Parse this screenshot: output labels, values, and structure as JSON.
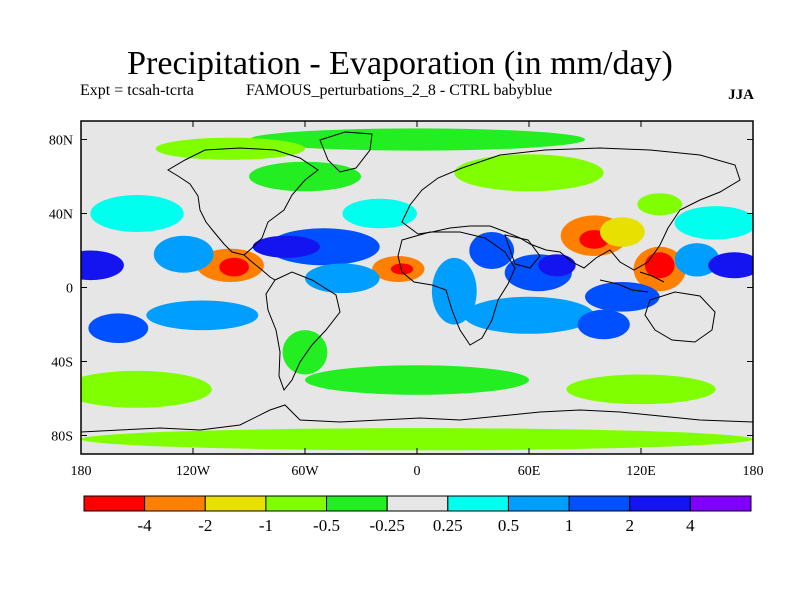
{
  "title": "Precipitation - Evaporation (in mm/day)",
  "subtitle": {
    "experiment": "Expt = tcsah-tcrta",
    "case": "FAMOUS_perturbations_2_8 - CTRL babyblue",
    "season": "JJA"
  },
  "map": {
    "lat_labels": [
      "80N",
      "40N",
      "0",
      "40S",
      "80S"
    ],
    "lon_labels": [
      "180",
      "120W",
      "60W",
      "0",
      "60E",
      "120E",
      "180"
    ],
    "lat_values": [
      80,
      40,
      0,
      -40,
      -80
    ],
    "lon_values": [
      -180,
      -120,
      -60,
      0,
      60,
      120,
      180
    ],
    "lat_range": [
      -90,
      90
    ],
    "lon_range": [
      -180,
      180
    ]
  },
  "colorbar": {
    "colors": [
      "#ff0000",
      "#ff7f00",
      "#e8e000",
      "#80ff00",
      "#22ee22",
      "#e6e6e6",
      "#00ffee",
      "#009fff",
      "#0050ff",
      "#1414f0",
      "#7f00ff"
    ],
    "labels": [
      "-4",
      "-2",
      "-1",
      "-0.5",
      "-0.25",
      "0.25",
      "0.5",
      "1",
      "2",
      "4"
    ]
  },
  "field_patches": [
    {
      "lon": -175,
      "lat": 12,
      "rlon": 18,
      "rlat": 8,
      "level": 9
    },
    {
      "lon": -100,
      "lat": 12,
      "rlon": 18,
      "rlat": 9,
      "level": 1
    },
    {
      "lon": -98,
      "lat": 11,
      "rlon": 8,
      "rlat": 5,
      "level": 0
    },
    {
      "lon": -125,
      "lat": 18,
      "rlon": 16,
      "rlat": 10,
      "level": 7
    },
    {
      "lon": -50,
      "lat": 22,
      "rlon": 30,
      "rlat": 10,
      "level": 8
    },
    {
      "lon": -70,
      "lat": 22,
      "rlon": 18,
      "rlat": 6,
      "level": 9
    },
    {
      "lon": -10,
      "lat": 10,
      "rlon": 14,
      "rlat": 7,
      "level": 1
    },
    {
      "lon": -8,
      "lat": 10,
      "rlon": 6,
      "rlat": 3,
      "level": 0
    },
    {
      "lon": -40,
      "lat": 5,
      "rlon": 20,
      "rlat": 8,
      "level": 7
    },
    {
      "lon": 20,
      "lat": -2,
      "rlon": 12,
      "rlat": 18,
      "level": 7
    },
    {
      "lon": 40,
      "lat": 20,
      "rlon": 12,
      "rlat": 10,
      "level": 8
    },
    {
      "lon": 65,
      "lat": 8,
      "rlon": 18,
      "rlat": 10,
      "level": 8
    },
    {
      "lon": 75,
      "lat": 12,
      "rlon": 10,
      "rlat": 6,
      "level": 9
    },
    {
      "lon": 95,
      "lat": 28,
      "rlon": 18,
      "rlat": 11,
      "level": 1
    },
    {
      "lon": 95,
      "lat": 26,
      "rlon": 8,
      "rlat": 5,
      "level": 0
    },
    {
      "lon": 110,
      "lat": 30,
      "rlon": 12,
      "rlat": 8,
      "level": 2
    },
    {
      "lon": 130,
      "lat": 10,
      "rlon": 14,
      "rlat": 12,
      "level": 1
    },
    {
      "lon": 130,
      "lat": 12,
      "rlon": 8,
      "rlat": 7,
      "level": 0
    },
    {
      "lon": 110,
      "lat": -5,
      "rlon": 20,
      "rlat": 8,
      "level": 8
    },
    {
      "lon": 150,
      "lat": 15,
      "rlon": 12,
      "rlat": 9,
      "level": 7
    },
    {
      "lon": 170,
      "lat": 12,
      "rlon": 14,
      "rlat": 7,
      "level": 9
    },
    {
      "lon": -160,
      "lat": -22,
      "rlon": 16,
      "rlat": 8,
      "level": 8
    },
    {
      "lon": -115,
      "lat": -15,
      "rlon": 30,
      "rlat": 8,
      "level": 7
    },
    {
      "lon": 60,
      "lat": -15,
      "rlon": 35,
      "rlat": 10,
      "level": 7
    },
    {
      "lon": 100,
      "lat": -20,
      "rlon": 14,
      "rlat": 8,
      "level": 8
    },
    {
      "lon": -150,
      "lat": 40,
      "rlon": 25,
      "rlat": 10,
      "level": 6
    },
    {
      "lon": -20,
      "lat": 40,
      "rlon": 20,
      "rlat": 8,
      "level": 6
    },
    {
      "lon": 160,
      "lat": 35,
      "rlon": 22,
      "rlat": 9,
      "level": 6
    },
    {
      "lon": 130,
      "lat": 45,
      "rlon": 12,
      "rlat": 6,
      "level": 3
    },
    {
      "lon": -60,
      "lat": 60,
      "rlon": 30,
      "rlat": 8,
      "level": 4
    },
    {
      "lon": 60,
      "lat": 62,
      "rlon": 40,
      "rlat": 10,
      "level": 3
    },
    {
      "lon": 0,
      "lat": 80,
      "rlon": 90,
      "rlat": 6,
      "level": 4
    },
    {
      "lon": -100,
      "lat": 75,
      "rlon": 40,
      "rlat": 6,
      "level": 3
    },
    {
      "lon": -150,
      "lat": -55,
      "rlon": 40,
      "rlat": 10,
      "level": 3
    },
    {
      "lon": 0,
      "lat": -50,
      "rlon": 60,
      "rlat": 8,
      "level": 4
    },
    {
      "lon": 120,
      "lat": -55,
      "rlon": 40,
      "rlat": 8,
      "level": 3
    },
    {
      "lon": -60,
      "lat": -35,
      "rlon": 12,
      "rlat": 12,
      "level": 4
    },
    {
      "lon": 0,
      "lat": -82,
      "rlon": 180,
      "rlat": 6,
      "level": 3
    }
  ]
}
